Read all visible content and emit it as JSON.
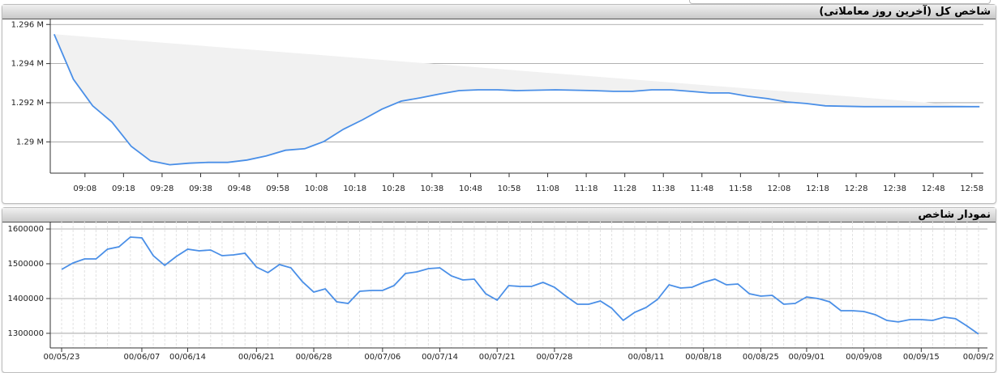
{
  "chart_data": [
    {
      "type": "line",
      "title": "شاخص کل (آخرین روز معاملاتی)",
      "color": "#4a8fe7",
      "area": true,
      "grid": true,
      "x": [
        "09:00",
        "09:05",
        "09:10",
        "09:15",
        "09:20",
        "09:25",
        "09:30",
        "09:35",
        "09:40",
        "09:45",
        "09:50",
        "09:55",
        "10:00",
        "10:05",
        "10:10",
        "10:15",
        "10:20",
        "10:25",
        "10:30",
        "10:35",
        "10:40",
        "10:45",
        "10:50",
        "10:55",
        "11:00",
        "11:05",
        "11:10",
        "11:15",
        "11:20",
        "11:25",
        "11:30",
        "11:35",
        "11:40",
        "11:45",
        "11:50",
        "11:55",
        "12:00",
        "12:05",
        "12:10",
        "12:15",
        "12:20",
        "12:25",
        "12:30",
        "12:35",
        "12:40",
        "12:45",
        "12:50",
        "12:55",
        "13:00"
      ],
      "values": [
        1295500,
        1293200,
        1291840,
        1291010,
        1289770,
        1289030,
        1288830,
        1288910,
        1288950,
        1288950,
        1289070,
        1289280,
        1289570,
        1289650,
        1290020,
        1290640,
        1291130,
        1291670,
        1292080,
        1292250,
        1292450,
        1292620,
        1292660,
        1292660,
        1292620,
        1292640,
        1292660,
        1292640,
        1292620,
        1292580,
        1292580,
        1292660,
        1292660,
        1292580,
        1292500,
        1292500,
        1292330,
        1292210,
        1292040,
        1291960,
        1291840,
        1291820,
        1291800,
        1291800,
        1291800,
        1291800,
        1291800,
        1291800,
        1291800
      ],
      "xlim": [
        "08:59",
        "13:01"
      ],
      "xticks": [
        "09:08",
        "09:18",
        "09:28",
        "09:38",
        "09:48",
        "09:58",
        "10:08",
        "10:18",
        "10:28",
        "10:38",
        "10:48",
        "10:58",
        "11:08",
        "11:18",
        "11:28",
        "11:38",
        "11:48",
        "11:58",
        "12:08",
        "12:18",
        "12:28",
        "12:38",
        "12:48",
        "12:58"
      ],
      "ylim": [
        1288400,
        1296300
      ],
      "yticks": [
        {
          "value": 1290000,
          "label": "1.29 M"
        },
        {
          "value": 1292000,
          "label": "1.292 M"
        },
        {
          "value": 1294000,
          "label": "1.294 M"
        },
        {
          "value": 1296000,
          "label": "1.296 M"
        }
      ]
    },
    {
      "type": "line",
      "title": "نمودار شاخص",
      "color": "#4a8fe7",
      "grid": true,
      "xgrid": true,
      "categories": [
        "00/05/23",
        null,
        null,
        null,
        null,
        null,
        null,
        "00/06/07",
        null,
        null,
        null,
        "00/06/14",
        null,
        null,
        null,
        null,
        null,
        "00/06/21",
        null,
        null,
        null,
        null,
        "00/06/28",
        null,
        null,
        null,
        null,
        null,
        "00/07/06",
        null,
        null,
        null,
        null,
        "00/07/14",
        null,
        null,
        null,
        null,
        "00/07/21",
        null,
        null,
        null,
        null,
        "00/07/28",
        null,
        null,
        null,
        null,
        null,
        null,
        null,
        "00/08/11",
        null,
        null,
        null,
        null,
        "00/08/18",
        null,
        null,
        null,
        null,
        "00/08/25",
        null,
        null,
        null,
        "00/09/01",
        null,
        null,
        null,
        null,
        "00/09/08",
        null,
        null,
        null,
        null,
        "00/09/15",
        null,
        null,
        null,
        null,
        "00/09/2"
      ],
      "values": [
        1483700,
        1502300,
        1514000,
        1514000,
        1541900,
        1548800,
        1576700,
        1574400,
        1523300,
        1495300,
        1520900,
        1541900,
        1537200,
        1539500,
        1523300,
        1525600,
        1530200,
        1490700,
        1474400,
        1497700,
        1488400,
        1448800,
        1418600,
        1427900,
        1390700,
        1386000,
        1420900,
        1423300,
        1423300,
        1437200,
        1472100,
        1476700,
        1486000,
        1488400,
        1465100,
        1453500,
        1455800,
        1414000,
        1395300,
        1437200,
        1434900,
        1434900,
        1446500,
        1432600,
        1407000,
        1383700,
        1383700,
        1393000,
        1372100,
        1337200,
        1360500,
        1374400,
        1397700,
        1439500,
        1430200,
        1432600,
        1446500,
        1455800,
        1439500,
        1441900,
        1414000,
        1407000,
        1409300,
        1383700,
        1386000,
        1404700,
        1400000,
        1390700,
        1365100,
        1365100,
        1362800,
        1353500,
        1337200,
        1332600,
        1339500,
        1339500,
        1337200,
        1346500,
        1341900,
        1320900,
        1297700
      ],
      "ylim": [
        1258000,
        1621000
      ],
      "yticks": [
        1300000,
        1400000,
        1500000,
        1600000
      ]
    }
  ]
}
